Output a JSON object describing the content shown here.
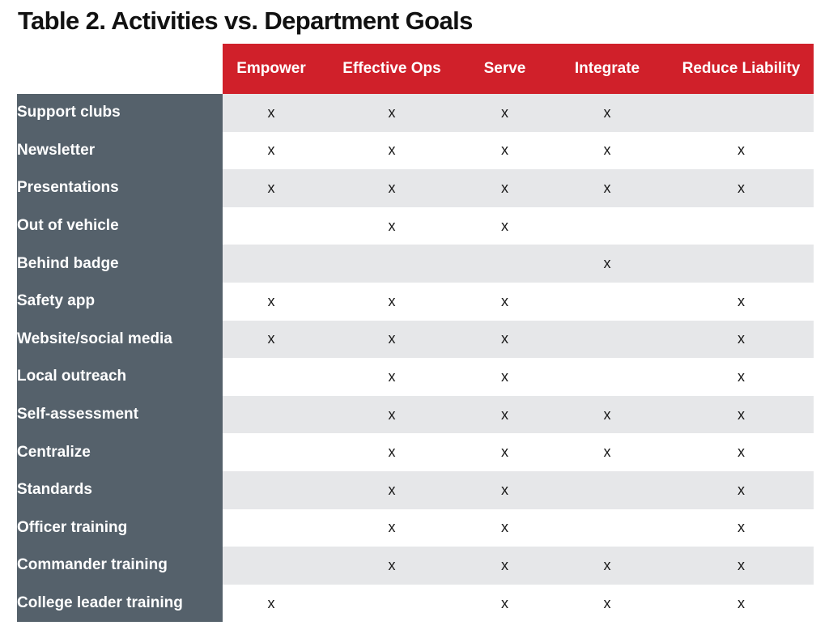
{
  "title": "Table 2. Activities vs. Department Goals",
  "columns": [
    "Empower",
    "Effective Ops",
    "Serve",
    "Integrate",
    "Reduce Liability"
  ],
  "rows": [
    {
      "activity": "Support clubs",
      "marks": [
        "x",
        "x",
        "x",
        "x",
        ""
      ]
    },
    {
      "activity": "Newsletter",
      "marks": [
        "x",
        "x",
        "x",
        "x",
        "x"
      ]
    },
    {
      "activity": "Presentations",
      "marks": [
        "x",
        "x",
        "x",
        "x",
        "x"
      ]
    },
    {
      "activity": "Out of vehicle",
      "marks": [
        "",
        "x",
        "x",
        "",
        ""
      ]
    },
    {
      "activity": "Behind badge",
      "marks": [
        "",
        "",
        "",
        "x",
        ""
      ]
    },
    {
      "activity": "Safety app",
      "marks": [
        "x",
        "x",
        "x",
        "",
        "x"
      ]
    },
    {
      "activity": "Website/social media",
      "marks": [
        "x",
        "x",
        "x",
        "",
        "x"
      ]
    },
    {
      "activity": "Local outreach",
      "marks": [
        "",
        "x",
        "x",
        "",
        "x"
      ]
    },
    {
      "activity": "Self-assessment",
      "marks": [
        "",
        "x",
        "x",
        "x",
        "x"
      ]
    },
    {
      "activity": "Centralize",
      "marks": [
        "",
        "x",
        "x",
        "x",
        "x"
      ]
    },
    {
      "activity": "Standards",
      "marks": [
        "",
        "x",
        "x",
        "",
        "x"
      ]
    },
    {
      "activity": "Officer training",
      "marks": [
        "",
        "x",
        "x",
        "",
        "x"
      ]
    },
    {
      "activity": "Commander training",
      "marks": [
        "",
        "x",
        "x",
        "x",
        "x"
      ]
    },
    {
      "activity": "College leader training",
      "marks": [
        "x",
        "",
        "x",
        "x",
        "x"
      ]
    }
  ],
  "colors": {
    "header_red": "#d0202a",
    "label_slate": "#55616b",
    "stripe_gray": "#e6e7e9",
    "title_text": "#111111"
  }
}
